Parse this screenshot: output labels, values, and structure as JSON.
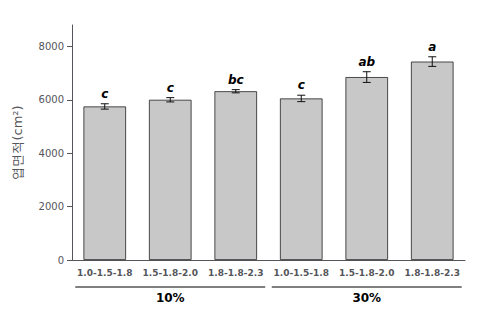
{
  "chart_data": {
    "type": "bar",
    "categories": [
      "1.0-1.5-1.8",
      "1.5-1.8-2.0",
      "1.8-1.8-2.3",
      "1.0-1.5-1.8",
      "1.5-1.8-2.0",
      "1.8-1.8-2.3"
    ],
    "values": [
      5750,
      6000,
      6320,
      6050,
      6850,
      7430
    ],
    "errors": [
      100,
      80,
      60,
      120,
      200,
      180
    ],
    "annotations": [
      "c",
      "c",
      "bc",
      "c",
      "ab",
      "a"
    ],
    "color": "#c8c8c8",
    "ylabel": "엽면적(cm²)",
    "ylim": [
      0,
      8800
    ],
    "yticks": [
      0,
      2000,
      4000,
      6000,
      8000
    ],
    "group_labels": [
      "10%",
      "30%"
    ],
    "grid": false
  }
}
